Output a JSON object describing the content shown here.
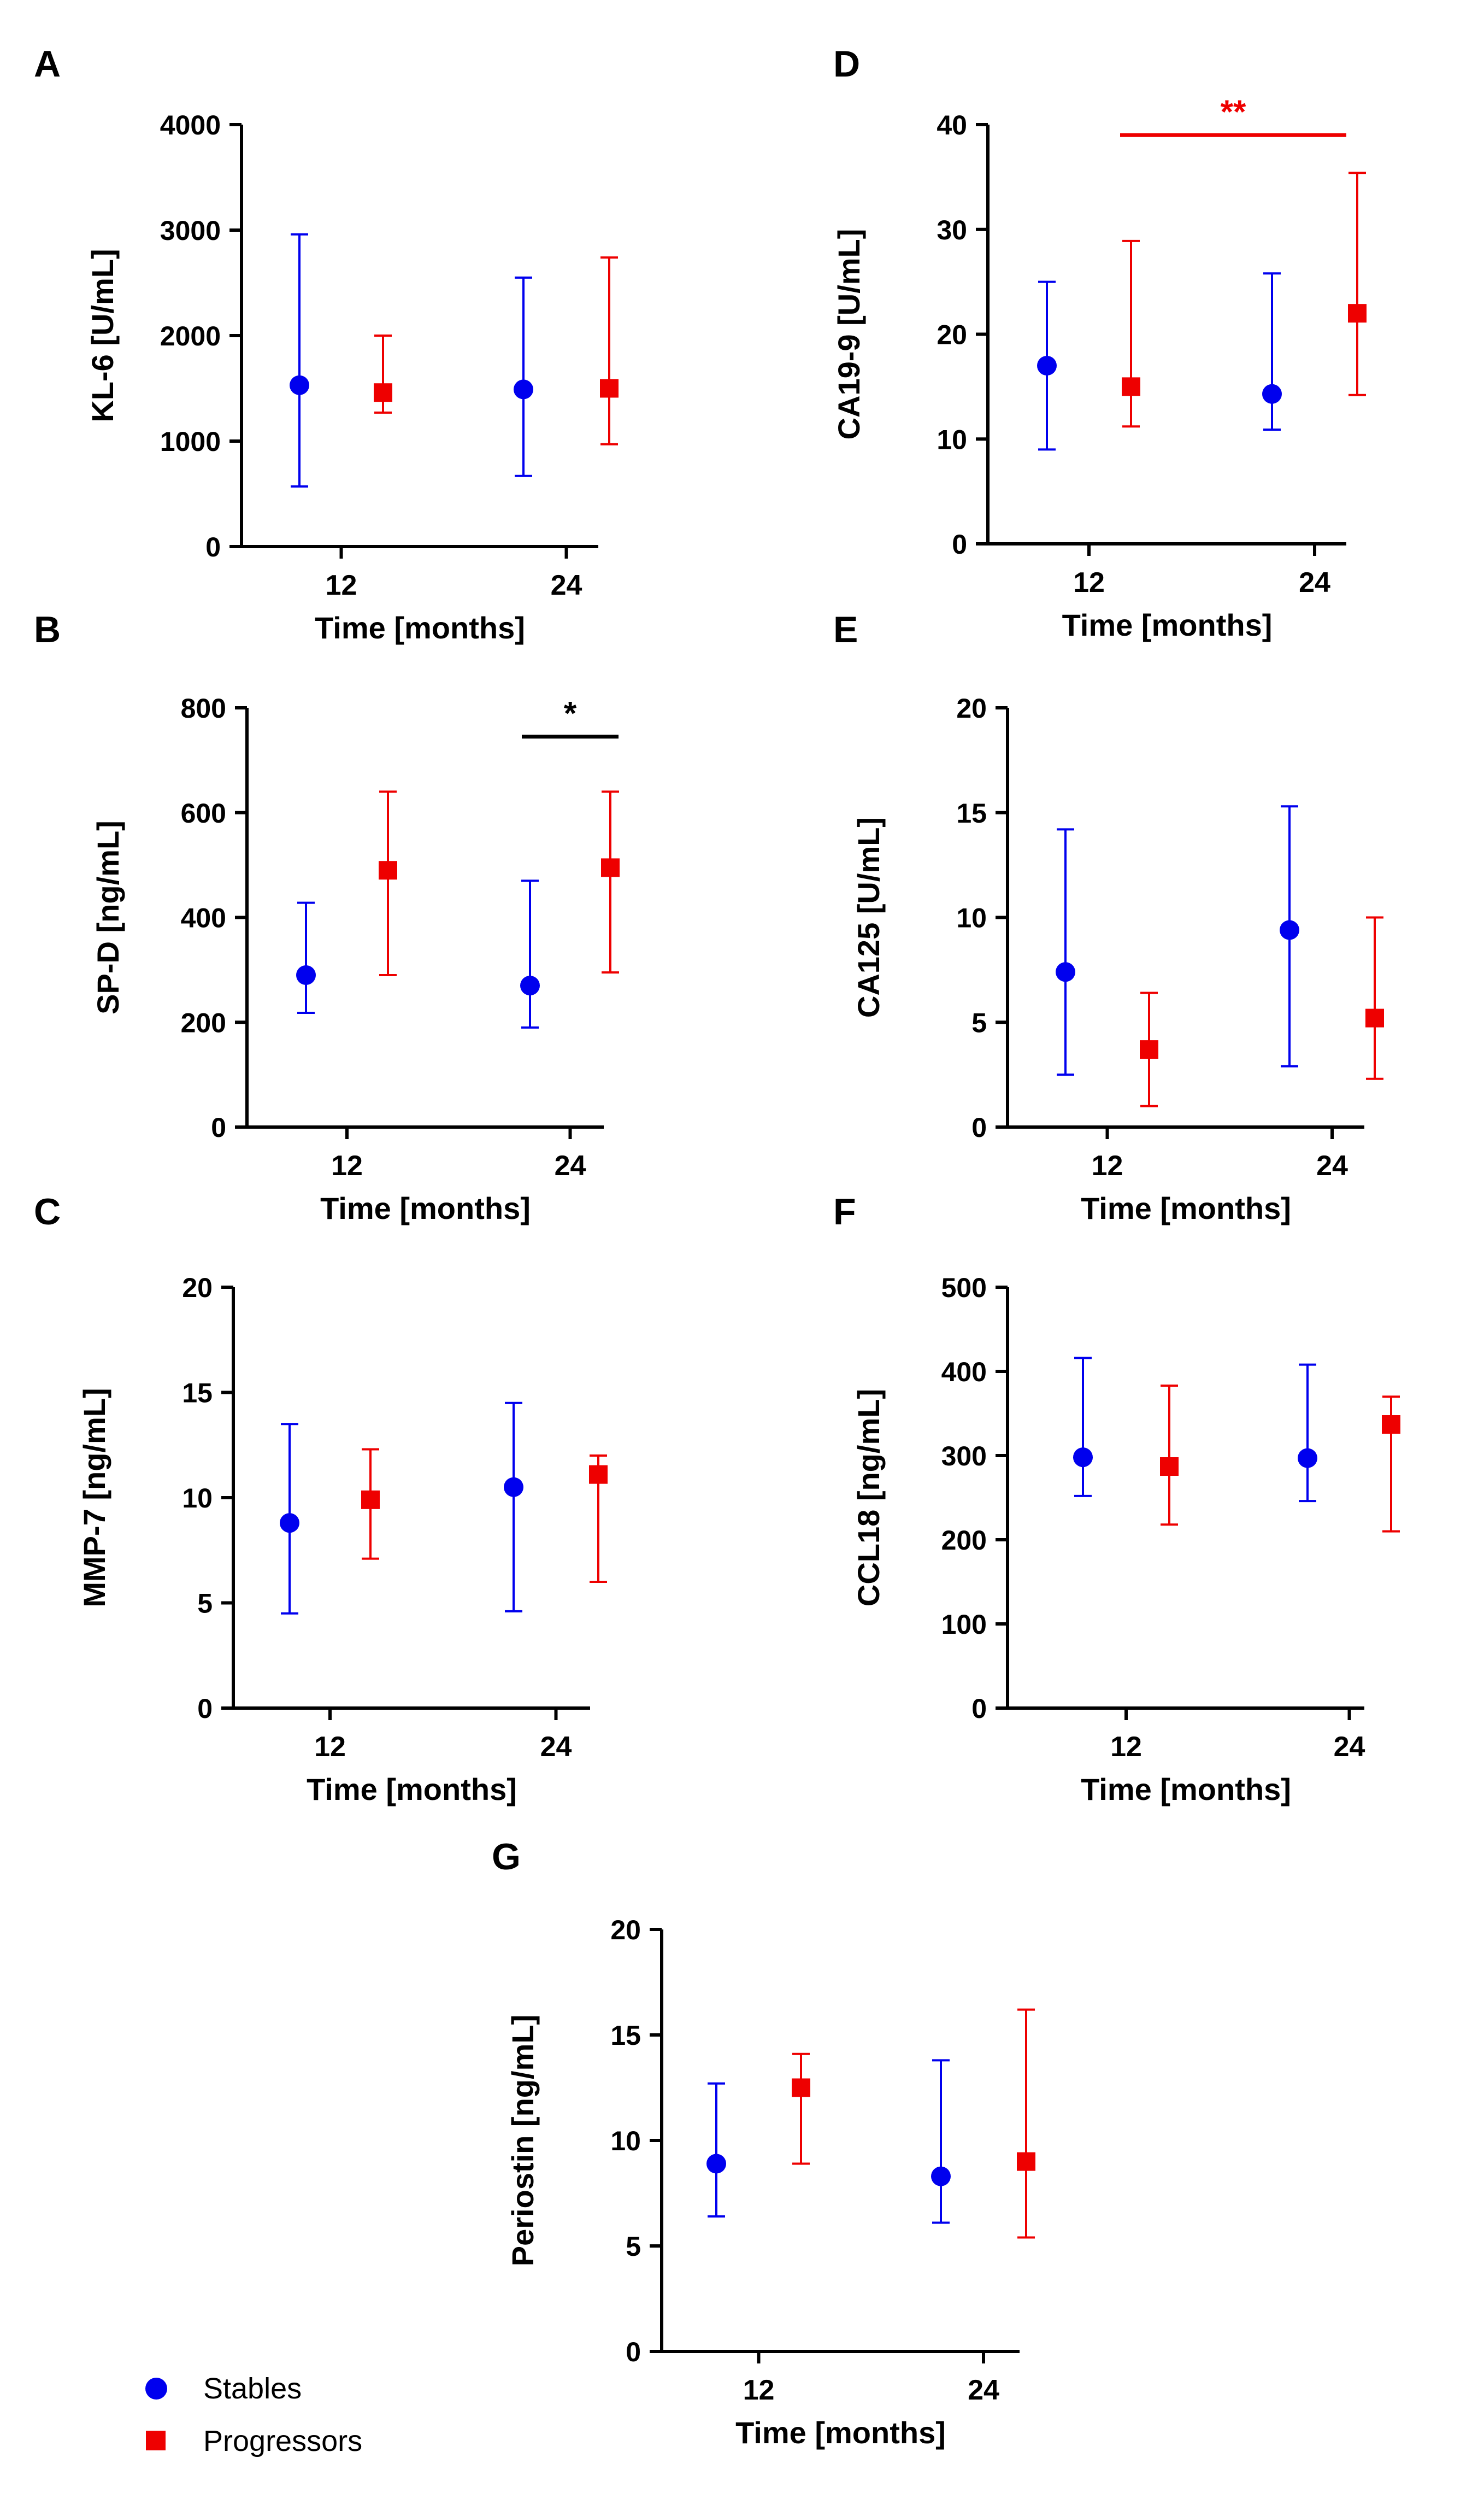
{
  "figure": {
    "legend": [
      {
        "name": "Stables",
        "color": "#0000ee",
        "marker": "circle"
      },
      {
        "name": "Progressors",
        "color": "#ee0000",
        "marker": "square"
      }
    ]
  },
  "chart_data": [
    {
      "panel": "A",
      "type": "scatter",
      "ylabel": "KL-6 [U/mL]",
      "xlabel": "Time  [months]",
      "categories": [
        "12",
        "24"
      ],
      "ylim": [
        0,
        4000
      ],
      "yticks": [
        0,
        1000,
        2000,
        3000,
        4000
      ],
      "series": [
        {
          "name": "Stables",
          "median": [
            1530,
            1490
          ],
          "low": [
            570,
            670
          ],
          "high": [
            2960,
            2550
          ]
        },
        {
          "name": "Progressors",
          "median": [
            1460,
            1500
          ],
          "low": [
            1270,
            970
          ],
          "high": [
            2000,
            2740
          ]
        }
      ],
      "significance": []
    },
    {
      "panel": "B",
      "type": "scatter",
      "ylabel": "SP-D [ng/mL]",
      "xlabel": "Time  [months]",
      "categories": [
        "12",
        "24"
      ],
      "ylim": [
        0,
        800
      ],
      "yticks": [
        0,
        200,
        400,
        600,
        800
      ],
      "series": [
        {
          "name": "Stables",
          "median": [
            290,
            270
          ],
          "low": [
            218,
            190
          ],
          "high": [
            428,
            470
          ]
        },
        {
          "name": "Progressors",
          "median": [
            490,
            495
          ],
          "low": [
            290,
            295
          ],
          "high": [
            640,
            640
          ]
        }
      ],
      "significance": [
        {
          "category": 1,
          "label": "*",
          "color": "#000000",
          "y": 745
        }
      ]
    },
    {
      "panel": "C",
      "type": "scatter",
      "ylabel": "MMP-7 [ng/mL]",
      "xlabel": "Time  [months]",
      "categories": [
        "12",
        "24"
      ],
      "ylim": [
        0,
        20
      ],
      "yticks": [
        0,
        5,
        10,
        15,
        20
      ],
      "series": [
        {
          "name": "Stables",
          "median": [
            8.8,
            10.5
          ],
          "low": [
            4.5,
            4.6
          ],
          "high": [
            13.5,
            14.5
          ]
        },
        {
          "name": "Progressors",
          "median": [
            9.9,
            11.1
          ],
          "low": [
            7.1,
            6.0
          ],
          "high": [
            12.3,
            12.0
          ]
        }
      ],
      "significance": []
    },
    {
      "panel": "D",
      "type": "scatter",
      "ylabel": "CA19-9 [U/mL]",
      "xlabel": "Time  [months]",
      "categories": [
        "12",
        "24"
      ],
      "ylim": [
        0,
        40
      ],
      "yticks": [
        0,
        10,
        20,
        30,
        40
      ],
      "series": [
        {
          "name": "Stables",
          "median": [
            17.0,
            14.3
          ],
          "low": [
            9.0,
            10.9
          ],
          "high": [
            25.0,
            25.8
          ]
        },
        {
          "name": "Progressors",
          "median": [
            15.0,
            22.0
          ],
          "low": [
            11.2,
            14.2
          ],
          "high": [
            28.9,
            35.4
          ]
        }
      ],
      "significance": [
        {
          "category": "span",
          "label": "**",
          "color": "#ee0000",
          "y": 39
        }
      ]
    },
    {
      "panel": "E",
      "type": "scatter",
      "ylabel": "CA125 [U/mL]",
      "xlabel": "Time  [months]",
      "categories": [
        "12",
        "24"
      ],
      "ylim": [
        0,
        20
      ],
      "yticks": [
        0,
        5,
        10,
        15,
        20
      ],
      "series": [
        {
          "name": "Stables",
          "median": [
            7.4,
            9.4
          ],
          "low": [
            2.5,
            2.9
          ],
          "high": [
            14.2,
            15.3
          ]
        },
        {
          "name": "Progressors",
          "median": [
            3.7,
            5.2
          ],
          "low": [
            1.0,
            2.3
          ],
          "high": [
            6.4,
            10.0
          ]
        }
      ],
      "significance": []
    },
    {
      "panel": "F",
      "type": "scatter",
      "ylabel": "CCL18 [ng/mL]",
      "xlabel": "Time  [months]",
      "categories": [
        "12",
        "24"
      ],
      "ylim": [
        0,
        500
      ],
      "yticks": [
        0,
        100,
        200,
        300,
        400,
        500
      ],
      "series": [
        {
          "name": "Stables",
          "median": [
            298,
            297
          ],
          "low": [
            252,
            246
          ],
          "high": [
            416,
            408
          ]
        },
        {
          "name": "Progressors",
          "median": [
            287,
            337
          ],
          "low": [
            218,
            210
          ],
          "high": [
            383,
            370
          ]
        }
      ],
      "significance": []
    },
    {
      "panel": "G",
      "type": "scatter",
      "ylabel": "Periostin [ng/mL]",
      "xlabel": "Time  [months]",
      "categories": [
        "12",
        "24"
      ],
      "ylim": [
        0,
        20
      ],
      "yticks": [
        0,
        5,
        10,
        15,
        20
      ],
      "series": [
        {
          "name": "Stables",
          "median": [
            8.9,
            8.3
          ],
          "low": [
            6.4,
            6.1
          ],
          "high": [
            12.7,
            13.8
          ]
        },
        {
          "name": "Progressors",
          "median": [
            12.5,
            9.0
          ],
          "low": [
            8.9,
            5.4
          ],
          "high": [
            14.1,
            16.2
          ]
        }
      ],
      "significance": []
    }
  ]
}
